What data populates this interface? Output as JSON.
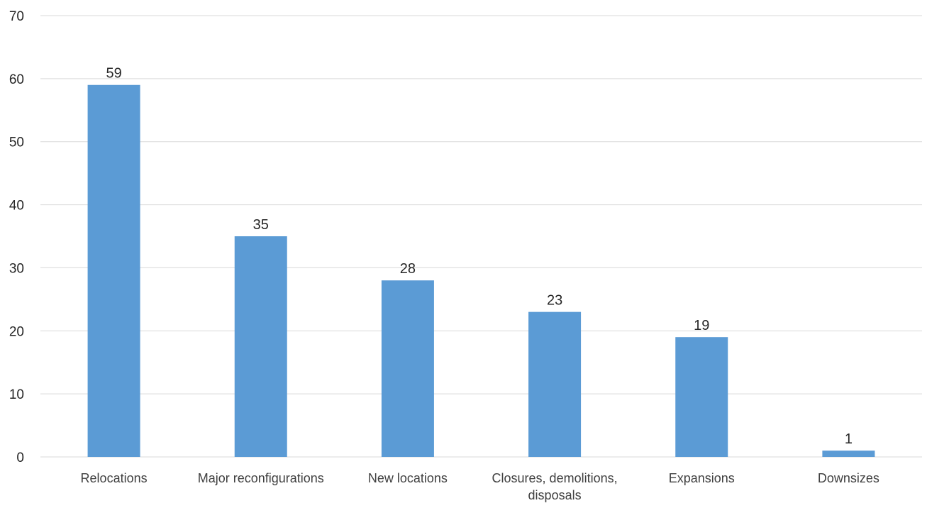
{
  "chart_data": {
    "type": "bar",
    "title": "",
    "xlabel": "",
    "ylabel": "",
    "categories": [
      [
        "Relocations"
      ],
      [
        "Major reconfigurations"
      ],
      [
        "New locations"
      ],
      [
        "Closures, demolitions,",
        "disposals"
      ],
      [
        "Expansions"
      ],
      [
        "Downsizes"
      ]
    ],
    "values": [
      59,
      35,
      28,
      23,
      19,
      1
    ],
    "ylim": [
      0,
      70
    ],
    "yticks": [
      0,
      10,
      20,
      30,
      40,
      50,
      60,
      70
    ],
    "grid": true,
    "legend": "none",
    "bar_color": "#5b9bd5",
    "data_labels": true
  }
}
